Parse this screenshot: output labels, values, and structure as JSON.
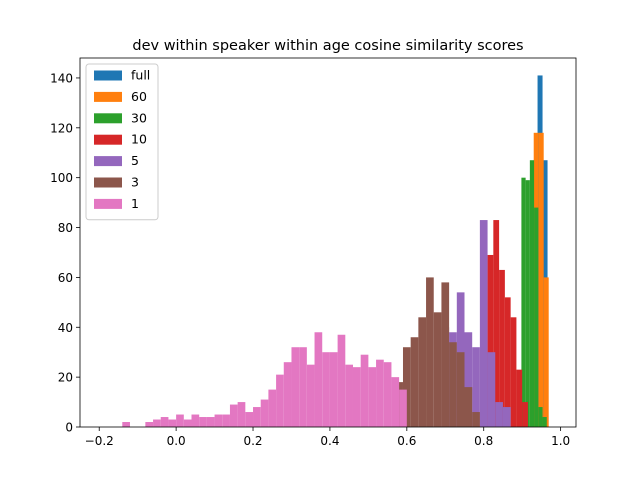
{
  "chart_data": {
    "type": "bar",
    "title": "dev within speaker within age cosine similarity scores",
    "xlabel": "",
    "ylabel": "",
    "xlim": [
      -0.25,
      1.04
    ],
    "ylim": [
      0,
      148
    ],
    "xticks": [
      -0.2,
      0.0,
      0.2,
      0.4,
      0.6,
      0.8,
      1.0
    ],
    "xtick_labels": [
      "−0.2",
      "0.0",
      "0.2",
      "0.4",
      "0.6",
      "0.8",
      "1.0"
    ],
    "yticks": [
      0,
      20,
      40,
      60,
      80,
      100,
      120,
      140
    ],
    "ytick_labels": [
      "0",
      "20",
      "40",
      "60",
      "80",
      "100",
      "120",
      "140"
    ],
    "grid": false,
    "legend_position": "top-left",
    "series": [
      {
        "name": "full",
        "color": "#1f77b4",
        "bins": [
          [
            0.94,
            0.953,
            141
          ],
          [
            0.953,
            0.966,
            107
          ]
        ]
      },
      {
        "name": "60",
        "color": "#ff7f0e",
        "bins": [
          [
            0.93,
            0.943,
            118
          ],
          [
            0.943,
            0.956,
            118
          ],
          [
            0.956,
            0.969,
            60
          ]
        ]
      },
      {
        "name": "30",
        "color": "#2ca02c",
        "bins": [
          [
            0.887,
            0.898,
            4
          ],
          [
            0.898,
            0.909,
            100
          ],
          [
            0.909,
            0.92,
            99
          ],
          [
            0.92,
            0.931,
            107
          ],
          [
            0.931,
            0.942,
            88
          ],
          [
            0.942,
            0.953,
            8
          ],
          [
            0.953,
            0.964,
            4
          ]
        ]
      },
      {
        "name": "10",
        "color": "#d62728",
        "bins": [
          [
            0.795,
            0.81,
            4
          ],
          [
            0.81,
            0.825,
            69
          ],
          [
            0.825,
            0.84,
            83
          ],
          [
            0.84,
            0.855,
            63
          ],
          [
            0.855,
            0.87,
            52
          ],
          [
            0.87,
            0.885,
            44
          ],
          [
            0.885,
            0.9,
            23
          ],
          [
            0.9,
            0.915,
            10
          ]
        ]
      },
      {
        "name": "5",
        "color": "#9467bd",
        "bins": [
          [
            0.69,
            0.71,
            40
          ],
          [
            0.71,
            0.73,
            38
          ],
          [
            0.73,
            0.75,
            54
          ],
          [
            0.75,
            0.77,
            38
          ],
          [
            0.77,
            0.79,
            32
          ],
          [
            0.79,
            0.81,
            83
          ],
          [
            0.81,
            0.83,
            30
          ],
          [
            0.83,
            0.85,
            10
          ],
          [
            0.85,
            0.87,
            8
          ]
        ]
      },
      {
        "name": "3",
        "color": "#8c564b",
        "bins": [
          [
            0.57,
            0.59,
            18
          ],
          [
            0.59,
            0.61,
            32
          ],
          [
            0.61,
            0.63,
            36
          ],
          [
            0.63,
            0.65,
            44
          ],
          [
            0.65,
            0.67,
            60
          ],
          [
            0.67,
            0.69,
            46
          ],
          [
            0.69,
            0.71,
            58
          ],
          [
            0.71,
            0.73,
            34
          ],
          [
            0.73,
            0.75,
            30
          ],
          [
            0.75,
            0.77,
            16
          ],
          [
            0.77,
            0.79,
            6
          ]
        ]
      },
      {
        "name": "1",
        "color": "#e377c2",
        "bins": [
          [
            -0.14,
            -0.12,
            2
          ],
          [
            -0.08,
            -0.06,
            2
          ],
          [
            -0.06,
            -0.04,
            3
          ],
          [
            -0.04,
            -0.02,
            4
          ],
          [
            -0.02,
            0.0,
            3
          ],
          [
            0.0,
            0.02,
            5
          ],
          [
            0.02,
            0.04,
            3
          ],
          [
            0.04,
            0.06,
            5
          ],
          [
            0.06,
            0.08,
            4
          ],
          [
            0.08,
            0.1,
            4
          ],
          [
            0.1,
            0.12,
            5
          ],
          [
            0.12,
            0.14,
            5
          ],
          [
            0.14,
            0.16,
            9
          ],
          [
            0.16,
            0.18,
            10
          ],
          [
            0.18,
            0.2,
            6
          ],
          [
            0.2,
            0.22,
            8
          ],
          [
            0.22,
            0.24,
            11
          ],
          [
            0.24,
            0.26,
            15
          ],
          [
            0.26,
            0.28,
            21
          ],
          [
            0.28,
            0.3,
            26
          ],
          [
            0.3,
            0.32,
            32
          ],
          [
            0.32,
            0.34,
            32
          ],
          [
            0.34,
            0.36,
            25
          ],
          [
            0.36,
            0.38,
            38
          ],
          [
            0.38,
            0.4,
            30
          ],
          [
            0.4,
            0.42,
            30
          ],
          [
            0.42,
            0.44,
            37
          ],
          [
            0.44,
            0.46,
            25
          ],
          [
            0.46,
            0.48,
            24
          ],
          [
            0.48,
            0.5,
            29
          ],
          [
            0.5,
            0.52,
            24
          ],
          [
            0.52,
            0.54,
            27
          ],
          [
            0.54,
            0.56,
            26
          ],
          [
            0.56,
            0.58,
            20
          ],
          [
            0.58,
            0.6,
            15
          ]
        ]
      }
    ]
  }
}
